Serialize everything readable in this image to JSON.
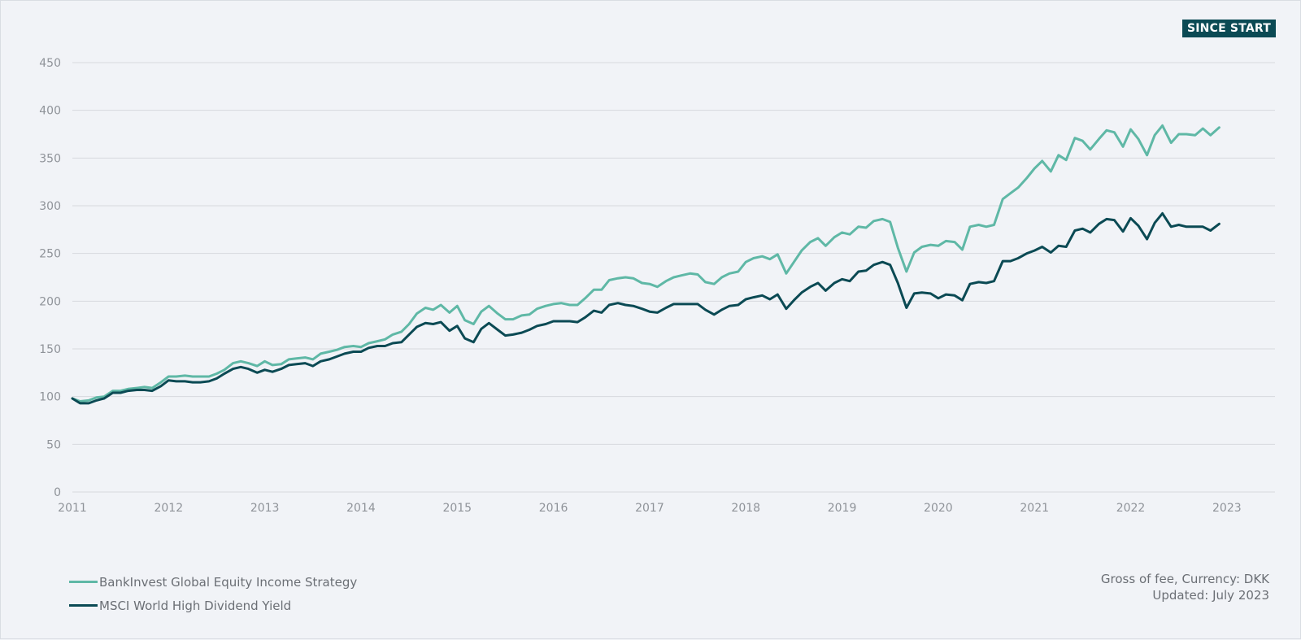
{
  "header": {
    "period_button_label": "SINCE START"
  },
  "colors": {
    "background": "#f1f3f7",
    "grid": "#d6d9de",
    "strategy": "#5fb8a6",
    "benchmark": "#0b4a54"
  },
  "legend": {
    "items": [
      {
        "label": "BankInvest Global Equity Income Strategy",
        "color": "#5fb8a6"
      },
      {
        "label": "MSCI World High Dividend Yield",
        "color": "#0b4a54"
      }
    ]
  },
  "footnote": {
    "line1": "Gross of fee, Currency: DKK",
    "line2": "Updated: July 2023"
  },
  "chart_data": {
    "type": "line",
    "title": "",
    "xlabel": "",
    "ylabel": "",
    "xlim": [
      2011,
      2023.5
    ],
    "ylim": [
      0,
      450
    ],
    "xticks": [
      2011,
      2012,
      2013,
      2014,
      2015,
      2016,
      2017,
      2018,
      2019,
      2020,
      2021,
      2022,
      2023
    ],
    "yticks": [
      0,
      50,
      100,
      150,
      200,
      250,
      300,
      350,
      400,
      450
    ],
    "grid": true,
    "legend_position": "bottom-left",
    "series": [
      {
        "name": "BankInvest Global Equity Income Strategy",
        "color": "#5fb8a6",
        "x": [
          2011.0,
          2011.08,
          2011.17,
          2011.25,
          2011.33,
          2011.42,
          2011.5,
          2011.58,
          2011.67,
          2011.75,
          2011.83,
          2011.92,
          2012.0,
          2012.08,
          2012.17,
          2012.25,
          2012.33,
          2012.42,
          2012.5,
          2012.58,
          2012.67,
          2012.75,
          2012.83,
          2012.92,
          2013.0,
          2013.08,
          2013.17,
          2013.25,
          2013.33,
          2013.42,
          2013.5,
          2013.58,
          2013.67,
          2013.75,
          2013.83,
          2013.92,
          2014.0,
          2014.08,
          2014.17,
          2014.25,
          2014.33,
          2014.42,
          2014.5,
          2014.58,
          2014.67,
          2014.75,
          2014.83,
          2014.92,
          2015.0,
          2015.08,
          2015.17,
          2015.25,
          2015.33,
          2015.42,
          2015.5,
          2015.58,
          2015.67,
          2015.75,
          2015.83,
          2015.92,
          2016.0,
          2016.08,
          2016.17,
          2016.25,
          2016.33,
          2016.42,
          2016.5,
          2016.58,
          2016.67,
          2016.75,
          2016.83,
          2016.92,
          2017.0,
          2017.08,
          2017.17,
          2017.25,
          2017.33,
          2017.42,
          2017.5,
          2017.58,
          2017.67,
          2017.75,
          2017.83,
          2017.92,
          2018.0,
          2018.08,
          2018.17,
          2018.25,
          2018.33,
          2018.42,
          2018.5,
          2018.58,
          2018.67,
          2018.75,
          2018.83,
          2018.92,
          2019.0,
          2019.08,
          2019.17,
          2019.25,
          2019.33,
          2019.42,
          2019.5,
          2019.58,
          2019.67,
          2019.75,
          2019.83,
          2019.92,
          2020.0,
          2020.08,
          2020.17,
          2020.25,
          2020.33,
          2020.42,
          2020.5,
          2020.58,
          2020.67,
          2020.75,
          2020.83,
          2020.92,
          2021.0,
          2021.08,
          2021.17,
          2021.25,
          2021.33,
          2021.42,
          2021.5,
          2021.58,
          2021.67,
          2021.75,
          2021.83,
          2021.92,
          2022.0,
          2022.08,
          2022.17,
          2022.25,
          2022.33,
          2022.42,
          2022.5,
          2022.58,
          2022.67,
          2022.75,
          2022.83,
          2022.92
        ],
        "y": [
          98,
          95,
          96,
          99,
          100,
          106,
          106,
          108,
          109,
          110,
          109,
          115,
          121,
          121,
          122,
          121,
          121,
          121,
          124,
          128,
          135,
          137,
          135,
          132,
          137,
          133,
          134,
          139,
          140,
          141,
          139,
          145,
          147,
          149,
          152,
          153,
          152,
          156,
          158,
          160,
          165,
          168,
          176,
          187,
          193,
          191,
          196,
          188,
          195,
          180,
          176,
          189,
          195,
          187,
          181,
          181,
          185,
          186,
          192,
          195,
          197,
          198,
          196,
          196,
          203,
          212,
          212,
          222,
          224,
          225,
          224,
          219,
          218,
          215,
          221,
          225,
          227,
          229,
          228,
          220,
          218,
          225,
          229,
          231,
          241,
          245,
          247,
          244,
          249,
          229,
          241,
          253,
          262,
          266,
          258,
          267,
          272,
          270,
          278,
          277,
          284,
          286,
          283,
          256,
          231,
          251,
          257,
          259,
          258,
          263,
          262,
          254,
          278,
          280,
          278,
          280,
          307,
          313,
          319,
          329,
          339,
          347,
          336,
          353,
          348,
          371,
          368,
          359,
          370,
          379,
          377,
          362,
          380,
          370,
          353,
          374,
          384,
          366,
          375,
          375,
          374,
          381,
          374,
          382
        ]
      },
      {
        "name": "MSCI World High Dividend Yield",
        "color": "#0b4a54",
        "x": [
          2011.0,
          2011.08,
          2011.17,
          2011.25,
          2011.33,
          2011.42,
          2011.5,
          2011.58,
          2011.67,
          2011.75,
          2011.83,
          2011.92,
          2012.0,
          2012.08,
          2012.17,
          2012.25,
          2012.33,
          2012.42,
          2012.5,
          2012.58,
          2012.67,
          2012.75,
          2012.83,
          2012.92,
          2013.0,
          2013.08,
          2013.17,
          2013.25,
          2013.33,
          2013.42,
          2013.5,
          2013.58,
          2013.67,
          2013.75,
          2013.83,
          2013.92,
          2014.0,
          2014.08,
          2014.17,
          2014.25,
          2014.33,
          2014.42,
          2014.5,
          2014.58,
          2014.67,
          2014.75,
          2014.83,
          2014.92,
          2015.0,
          2015.08,
          2015.17,
          2015.25,
          2015.33,
          2015.42,
          2015.5,
          2015.58,
          2015.67,
          2015.75,
          2015.83,
          2015.92,
          2016.0,
          2016.08,
          2016.17,
          2016.25,
          2016.33,
          2016.42,
          2016.5,
          2016.58,
          2016.67,
          2016.75,
          2016.83,
          2016.92,
          2017.0,
          2017.08,
          2017.17,
          2017.25,
          2017.33,
          2017.42,
          2017.5,
          2017.58,
          2017.67,
          2017.75,
          2017.83,
          2017.92,
          2018.0,
          2018.08,
          2018.17,
          2018.25,
          2018.33,
          2018.42,
          2018.5,
          2018.58,
          2018.67,
          2018.75,
          2018.83,
          2018.92,
          2019.0,
          2019.08,
          2019.17,
          2019.25,
          2019.33,
          2019.42,
          2019.5,
          2019.58,
          2019.67,
          2019.75,
          2019.83,
          2019.92,
          2020.0,
          2020.08,
          2020.17,
          2020.25,
          2020.33,
          2020.42,
          2020.5,
          2020.58,
          2020.67,
          2020.75,
          2020.83,
          2020.92,
          2021.0,
          2021.08,
          2021.17,
          2021.25,
          2021.33,
          2021.42,
          2021.5,
          2021.58,
          2021.67,
          2021.75,
          2021.83,
          2021.92,
          2022.0,
          2022.08,
          2022.17,
          2022.25,
          2022.33,
          2022.42,
          2022.5,
          2022.58,
          2022.67,
          2022.75,
          2022.83,
          2022.92
        ],
        "y": [
          98,
          93,
          93,
          96,
          98,
          104,
          104,
          106,
          107,
          107,
          106,
          111,
          117,
          116,
          116,
          115,
          115,
          116,
          119,
          124,
          129,
          131,
          129,
          125,
          128,
          126,
          129,
          133,
          134,
          135,
          132,
          137,
          139,
          142,
          145,
          147,
          147,
          151,
          153,
          153,
          156,
          157,
          165,
          173,
          177,
          176,
          178,
          169,
          174,
          161,
          157,
          171,
          177,
          170,
          164,
          165,
          167,
          170,
          174,
          176,
          179,
          179,
          179,
          178,
          183,
          190,
          188,
          196,
          198,
          196,
          195,
          192,
          189,
          188,
          193,
          197,
          197,
          197,
          197,
          191,
          186,
          191,
          195,
          196,
          202,
          204,
          206,
          202,
          207,
          192,
          201,
          209,
          215,
          219,
          211,
          219,
          223,
          221,
          231,
          232,
          238,
          241,
          238,
          219,
          193,
          208,
          209,
          208,
          203,
          207,
          206,
          201,
          218,
          220,
          219,
          221,
          242,
          242,
          245,
          250,
          253,
          257,
          251,
          258,
          257,
          274,
          276,
          272,
          281,
          286,
          285,
          273,
          287,
          279,
          265,
          282,
          292,
          278,
          280,
          278,
          278,
          278,
          274,
          281
        ]
      }
    ]
  }
}
